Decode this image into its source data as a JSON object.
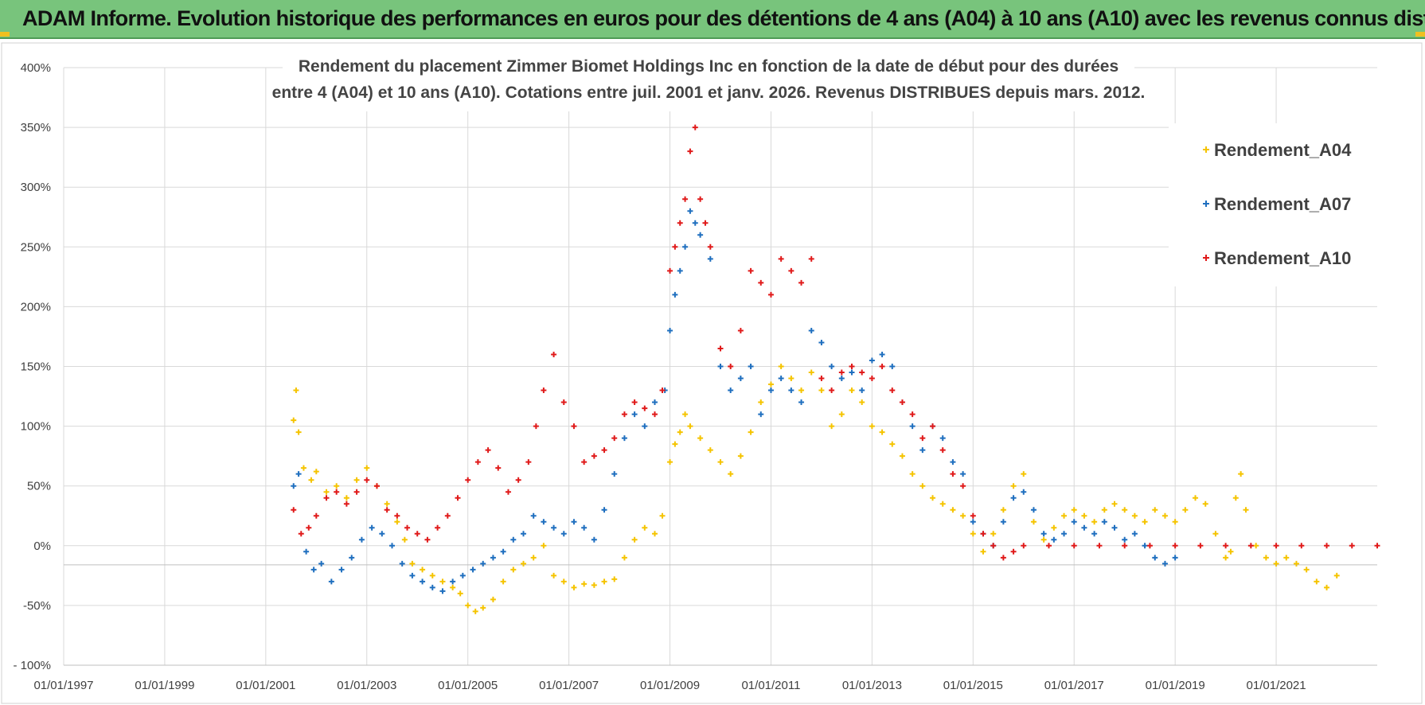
{
  "header": {
    "title": "ADAM Informe. Evolution historique des performances en euros pour des détentions de 4 ans (A04) à 10 ans (A10) avec les revenus connus distribués"
  },
  "colors": {
    "header_bg": "#78c47c",
    "A04": "#f5c400",
    "A07": "#1f6fbf",
    "A10": "#e01a1a",
    "grid": "#d9d9d9"
  },
  "chart_data": {
    "type": "scatter",
    "title": [
      "Rendement du placement Zimmer Biomet Holdings Inc en fonction de la date de début pour des durées",
      "entre 4 (A04) et 10 ans (A10). Cotations entre juil. 2001 et janv. 2026. Revenus DISTRIBUES depuis mars. 2012."
    ],
    "xlabel": "",
    "ylabel": "",
    "xlim": [
      1997.0,
      2023.0
    ],
    "ylim": [
      -100,
      400
    ],
    "x_ticks": [
      1997,
      1999,
      2001,
      2003,
      2005,
      2007,
      2009,
      2011,
      2013,
      2015,
      2017,
      2019,
      2021
    ],
    "x_tick_labels": [
      "01/01/1997",
      "01/01/1999",
      "01/01/2001",
      "01/01/2003",
      "01/01/2005",
      "01/01/2007",
      "01/01/2009",
      "01/01/2011",
      "01/01/2013",
      "01/01/2015",
      "01/01/2017",
      "01/01/2019",
      "01/01/2021"
    ],
    "y_ticks": [
      -100,
      -50,
      0,
      50,
      100,
      150,
      200,
      250,
      300,
      350,
      400
    ],
    "y_tick_labels": [
      "- 100%",
      "-50%",
      "0%",
      "50%",
      "100%",
      "150%",
      "200%",
      "250%",
      "300%",
      "350%",
      "400%"
    ],
    "marker": "+",
    "legend_position": "top-right",
    "series": [
      {
        "name": "Rendement_A04",
        "color": "#f5c400",
        "x": [
          2001.55,
          2001.6,
          2001.65,
          2001.75,
          2001.9,
          2002.0,
          2002.2,
          2002.4,
          2002.6,
          2002.8,
          2003.0,
          2003.2,
          2003.4,
          2003.6,
          2003.75,
          2003.9,
          2004.1,
          2004.3,
          2004.5,
          2004.7,
          2004.85,
          2005.0,
          2005.15,
          2005.3,
          2005.5,
          2005.7,
          2005.9,
          2006.1,
          2006.3,
          2006.5,
          2006.7,
          2006.9,
          2007.1,
          2007.3,
          2007.5,
          2007.7,
          2007.9,
          2008.1,
          2008.3,
          2008.5,
          2008.7,
          2008.85,
          2009.0,
          2009.1,
          2009.2,
          2009.3,
          2009.4,
          2009.6,
          2009.8,
          2010.0,
          2010.2,
          2010.4,
          2010.6,
          2010.8,
          2011.0,
          2011.2,
          2011.4,
          2011.6,
          2011.8,
          2012.0,
          2012.2,
          2012.4,
          2012.6,
          2012.8,
          2013.0,
          2013.2,
          2013.4,
          2013.6,
          2013.8,
          2014.0,
          2014.2,
          2014.4,
          2014.6,
          2014.8,
          2015.0,
          2015.2,
          2015.4,
          2015.6,
          2015.8,
          2016.0,
          2016.2,
          2016.4,
          2016.6,
          2016.8,
          2017.0,
          2017.2,
          2017.4,
          2017.6,
          2017.8,
          2018.0,
          2018.2,
          2018.4,
          2018.6,
          2018.8,
          2019.0,
          2019.2,
          2019.4,
          2019.6,
          2019.8,
          2020.0,
          2020.1,
          2020.2,
          2020.3,
          2020.4,
          2020.6,
          2020.8,
          2021.0,
          2021.2,
          2021.4,
          2021.6,
          2021.8,
          2022.0,
          2022.2
        ],
        "y": [
          105,
          130,
          95,
          65,
          55,
          62,
          45,
          50,
          40,
          55,
          65,
          50,
          35,
          20,
          5,
          -15,
          -20,
          -25,
          -30,
          -35,
          -40,
          -50,
          -55,
          -52,
          -45,
          -30,
          -20,
          -15,
          -10,
          0,
          -25,
          -30,
          -35,
          -32,
          -33,
          -30,
          -28,
          -10,
          5,
          15,
          10,
          25,
          70,
          85,
          95,
          110,
          100,
          90,
          80,
          70,
          60,
          75,
          95,
          120,
          135,
          150,
          140,
          130,
          145,
          130,
          100,
          110,
          130,
          120,
          100,
          95,
          85,
          75,
          60,
          50,
          40,
          35,
          30,
          25,
          10,
          -5,
          10,
          30,
          50,
          60,
          20,
          5,
          15,
          25,
          30,
          25,
          20,
          30,
          35,
          30,
          25,
          20,
          30,
          25,
          20,
          30,
          40,
          35,
          10,
          -10,
          -5,
          40,
          60,
          30,
          0,
          -10,
          -15,
          -10,
          -15,
          -20,
          -30,
          -35,
          -25
        ]
      },
      {
        "name": "Rendement_A07",
        "color": "#1f6fbf",
        "x": [
          2001.55,
          2001.65,
          2001.8,
          2001.95,
          2002.1,
          2002.3,
          2002.5,
          2002.7,
          2002.9,
          2003.1,
          2003.3,
          2003.5,
          2003.7,
          2003.9,
          2004.1,
          2004.3,
          2004.5,
          2004.7,
          2004.9,
          2005.1,
          2005.3,
          2005.5,
          2005.7,
          2005.9,
          2006.1,
          2006.3,
          2006.5,
          2006.7,
          2006.9,
          2007.1,
          2007.3,
          2007.5,
          2007.7,
          2007.9,
          2008.1,
          2008.3,
          2008.5,
          2008.7,
          2008.9,
          2009.0,
          2009.1,
          2009.2,
          2009.3,
          2009.4,
          2009.5,
          2009.6,
          2009.8,
          2010.0,
          2010.2,
          2010.4,
          2010.6,
          2010.8,
          2011.0,
          2011.2,
          2011.4,
          2011.6,
          2011.8,
          2012.0,
          2012.2,
          2012.4,
          2012.6,
          2012.8,
          2013.0,
          2013.2,
          2013.4,
          2013.6,
          2013.8,
          2014.0,
          2014.2,
          2014.4,
          2014.6,
          2014.8,
          2015.0,
          2015.2,
          2015.4,
          2015.6,
          2015.8,
          2016.0,
          2016.2,
          2016.4,
          2016.6,
          2016.8,
          2017.0,
          2017.2,
          2017.4,
          2017.6,
          2017.8,
          2018.0,
          2018.2,
          2018.4,
          2018.6,
          2018.8,
          2019.0
        ],
        "y": [
          50,
          60,
          -5,
          -20,
          -15,
          -30,
          -20,
          -10,
          5,
          15,
          10,
          0,
          -15,
          -25,
          -30,
          -35,
          -38,
          -30,
          -25,
          -20,
          -15,
          -10,
          -5,
          5,
          10,
          25,
          20,
          15,
          10,
          20,
          15,
          5,
          30,
          60,
          90,
          110,
          100,
          120,
          130,
          180,
          210,
          230,
          250,
          280,
          270,
          260,
          240,
          150,
          130,
          140,
          150,
          110,
          130,
          140,
          130,
          120,
          180,
          170,
          150,
          140,
          145,
          130,
          155,
          160,
          150,
          120,
          100,
          80,
          100,
          90,
          70,
          60,
          20,
          10,
          0,
          20,
          40,
          45,
          30,
          10,
          5,
          10,
          20,
          15,
          10,
          20,
          15,
          5,
          10,
          0,
          -10,
          -15,
          -10
        ]
      },
      {
        "name": "Rendement_A10",
        "color": "#e01a1a",
        "x": [
          2001.55,
          2001.7,
          2001.85,
          2002.0,
          2002.2,
          2002.4,
          2002.6,
          2002.8,
          2003.0,
          2003.2,
          2003.4,
          2003.6,
          2003.8,
          2004.0,
          2004.2,
          2004.4,
          2004.6,
          2004.8,
          2005.0,
          2005.2,
          2005.4,
          2005.6,
          2005.8,
          2006.0,
          2006.2,
          2006.35,
          2006.5,
          2006.7,
          2006.9,
          2007.1,
          2007.3,
          2007.5,
          2007.7,
          2007.9,
          2008.1,
          2008.3,
          2008.5,
          2008.7,
          2008.85,
          2009.0,
          2009.1,
          2009.2,
          2009.3,
          2009.4,
          2009.5,
          2009.6,
          2009.7,
          2009.8,
          2010.0,
          2010.2,
          2010.4,
          2010.6,
          2010.8,
          2011.0,
          2011.2,
          2011.4,
          2011.6,
          2011.8,
          2012.0,
          2012.2,
          2012.4,
          2012.6,
          2012.8,
          2013.0,
          2013.2,
          2013.4,
          2013.6,
          2013.8,
          2014.0,
          2014.2,
          2014.4,
          2014.6,
          2014.8,
          2015.0,
          2015.2,
          2015.4,
          2015.6,
          2015.8,
          2016.0,
          2016.5,
          2017.0,
          2017.5,
          2018.0,
          2018.5,
          2019.0,
          2019.5,
          2020.0,
          2020.5,
          2021.0,
          2021.5,
          2022.0,
          2022.5,
          2023.0
        ],
        "y": [
          30,
          10,
          15,
          25,
          40,
          45,
          35,
          45,
          55,
          50,
          30,
          25,
          15,
          10,
          5,
          15,
          25,
          40,
          55,
          70,
          80,
          65,
          45,
          55,
          70,
          100,
          130,
          160,
          120,
          100,
          70,
          75,
          80,
          90,
          110,
          120,
          115,
          110,
          130,
          230,
          250,
          270,
          290,
          330,
          350,
          290,
          270,
          250,
          165,
          150,
          180,
          230,
          220,
          210,
          240,
          230,
          220,
          240,
          140,
          130,
          145,
          150,
          145,
          140,
          150,
          130,
          120,
          110,
          90,
          100,
          80,
          60,
          50,
          25,
          10,
          0,
          -10,
          -5,
          0,
          0,
          0,
          0,
          0,
          0,
          0,
          0,
          0,
          0,
          0,
          0,
          0,
          0,
          0
        ]
      }
    ]
  }
}
